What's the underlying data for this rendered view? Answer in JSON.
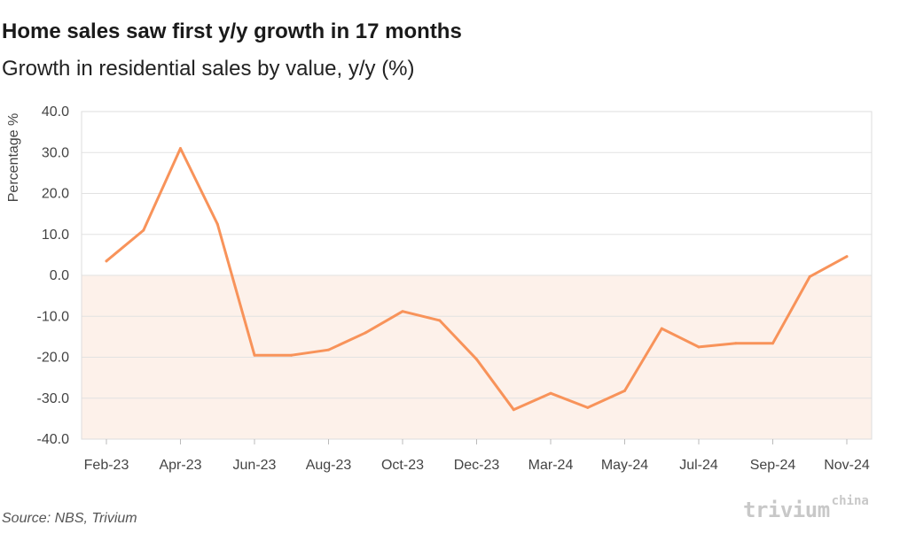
{
  "title": "Home sales saw first y/y growth in 17 months",
  "subtitle": "Growth in residential sales by value, y/y (%)",
  "source": "Source: NBS, Trivium",
  "logo": {
    "word": "trivium",
    "superscript": "china"
  },
  "colors": {
    "line": "#f8935a",
    "negative_fill": "#fdf1ea",
    "grid": "#e2e2e2",
    "frame": "#dddddd"
  },
  "chart_data": {
    "type": "line",
    "title": "Home sales saw first y/y growth in 17 months",
    "subtitle": "Growth in residential sales by value, y/y (%)",
    "xlabel": "",
    "ylabel": "Percentage %",
    "ylim": [
      -40,
      40
    ],
    "y_ticks": [
      "40.0",
      "30.0",
      "20.0",
      "10.0",
      "0.0",
      "-10.0",
      "-20.0",
      "-30.0",
      "-40.0"
    ],
    "y_tick_values": [
      40,
      30,
      20,
      10,
      0,
      -10,
      -20,
      -30,
      -40
    ],
    "x": [
      "Feb-23",
      "Mar-23",
      "Apr-23",
      "May-23",
      "Jun-23",
      "Jul-23",
      "Aug-23",
      "Sep-23",
      "Oct-23",
      "Nov-23",
      "Dec-23",
      "Jan-24",
      "Mar-24",
      "Apr-24",
      "May-24",
      "Jun-24",
      "Jul-24",
      "Aug-24",
      "Sep-24",
      "Oct-24",
      "Nov-24"
    ],
    "x_tick_labels": [
      "Feb-23",
      "Apr-23",
      "Jun-23",
      "Aug-23",
      "Oct-23",
      "Dec-23",
      "Mar-24",
      "May-24",
      "Jul-24",
      "Sep-24",
      "Nov-24"
    ],
    "x_tick_indices": [
      0,
      2,
      4,
      6,
      8,
      10,
      12,
      14,
      16,
      18,
      20
    ],
    "series": [
      {
        "values": [
          3.5,
          11.0,
          31.0,
          12.5,
          -19.5,
          -19.5,
          -18.2,
          -14.0,
          -8.8,
          -11.0,
          -20.5,
          -32.8,
          -28.8,
          -32.3,
          -28.2,
          -13.0,
          -17.5,
          -16.6,
          -16.6,
          -0.3,
          4.6
        ]
      }
    ],
    "grid": true,
    "negative_region_shaded": true
  }
}
